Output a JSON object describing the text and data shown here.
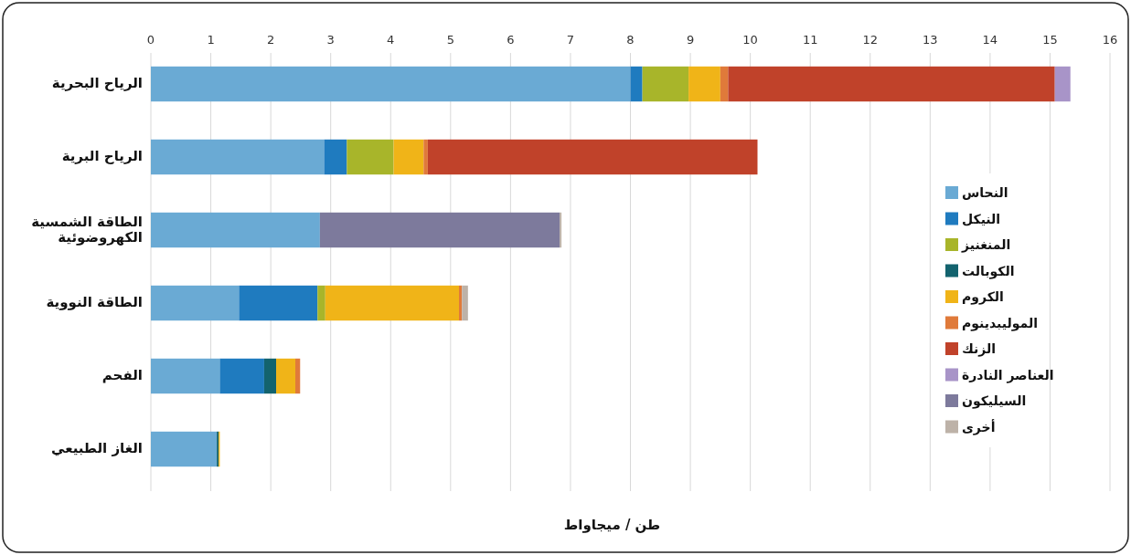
{
  "chart_data": {
    "type": "bar",
    "orientation": "horizontal",
    "stacked": true,
    "categories": [
      "الرياح البحرية",
      "الرياح البرية",
      "الطاقة الشمسية الكهروضوئية",
      "الطاقة النووية",
      "الفحم",
      "الغاز الطبيعي"
    ],
    "series": [
      {
        "name": "النحاس",
        "color": "#6aaad4",
        "values": [
          8.0,
          2.89,
          2.82,
          1.47,
          1.15,
          1.1
        ]
      },
      {
        "name": "النيكل",
        "color": "#1f7bbf",
        "values": [
          0.2,
          0.38,
          null,
          1.31,
          0.74,
          null
        ]
      },
      {
        "name": "المنغنيز",
        "color": "#a8b52a",
        "values": [
          0.77,
          0.78,
          null,
          0.13,
          null,
          null
        ]
      },
      {
        "name": "الكوبالت",
        "color": "#13636e",
        "values": [
          null,
          null,
          null,
          null,
          0.2,
          0.03
        ]
      },
      {
        "name": "الكروم",
        "color": "#f0b418",
        "values": [
          0.53,
          0.5,
          null,
          2.23,
          0.32,
          0.02
        ]
      },
      {
        "name": "الموليبدينوم",
        "color": "#e07a3a",
        "values": [
          0.13,
          0.07,
          null,
          0.05,
          0.08,
          null
        ]
      },
      {
        "name": "الزنك",
        "color": "#c0422a",
        "values": [
          5.45,
          5.5,
          null,
          null,
          null,
          null
        ]
      },
      {
        "name": "العناصر النادرة",
        "color": "#a894c8",
        "values": [
          0.26,
          null,
          null,
          null,
          null,
          null
        ]
      },
      {
        "name": "السيليكون",
        "color": "#7d7a9c",
        "values": [
          null,
          null,
          4.0,
          null,
          null,
          null
        ]
      },
      {
        "name": "أخرى",
        "color": "#bdb2a8",
        "values": [
          null,
          null,
          0.03,
          0.1,
          null,
          null
        ]
      }
    ],
    "xlim": [
      0,
      16
    ],
    "xticks": [
      0,
      1,
      2,
      3,
      4,
      5,
      6,
      7,
      8,
      9,
      10,
      11,
      12,
      13,
      14,
      15,
      16
    ],
    "xlabel": "طن / ميجاواط",
    "grid": "x",
    "legend": "right"
  }
}
